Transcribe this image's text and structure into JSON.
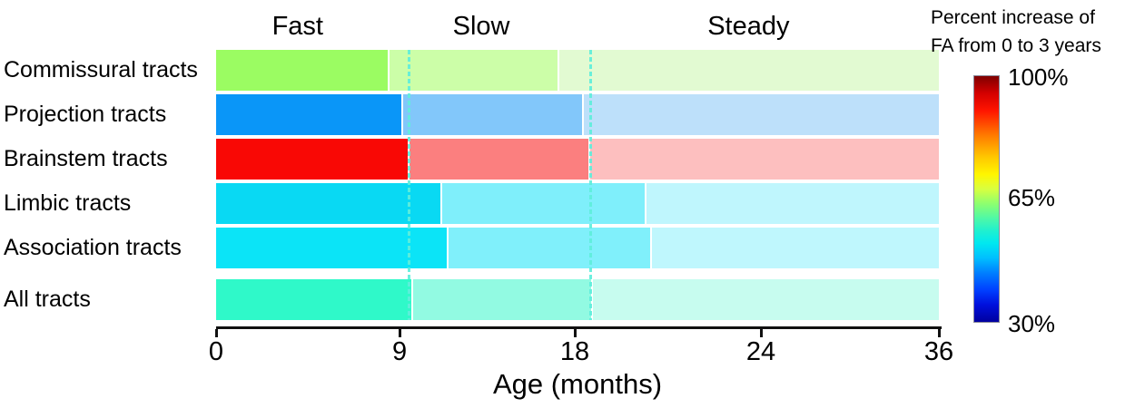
{
  "axis": {
    "label": "Age (months)",
    "tick_labels": [
      "0",
      "9",
      "18",
      "24",
      "36"
    ]
  },
  "colorbar": {
    "title_line1": "Percent increase of",
    "title_line2": "FA from 0 to 3 years",
    "max_label": "100%",
    "mid_label": "65%",
    "min_label": "30%"
  },
  "chart_data": {
    "type": "bar",
    "subtype": "stacked-horizontal-phase-chart",
    "xlabel": "Age (months)",
    "x_ticks": [
      0,
      9,
      18,
      24,
      36
    ],
    "x_axis_note": "axis spacing is equal per tick interval (non-linear in months)",
    "phase_labels": [
      "Fast",
      "Slow",
      "Steady"
    ],
    "phase_label_positions_months": [
      4.0,
      13.2,
      23.6
    ],
    "dashed_lines_months": [
      9.5,
      18.5
    ],
    "dashed_line_color": "#5FEEDB",
    "colorbar": {
      "title": "Percent increase of FA from 0 to 3 years",
      "colormap": "jet",
      "min": "30%",
      "mid": "65%",
      "max": "100%"
    },
    "tracts": [
      {
        "name": "Commissural tracts",
        "fast_end_months": 8.5,
        "slow_end_months": 17.2,
        "colors": {
          "fast": "#9BFC62",
          "slow": "#CCFEA8",
          "steady": "#E2FAD2"
        }
      },
      {
        "name": "Projection tracts",
        "fast_end_months": 9.2,
        "slow_end_months": 18.3,
        "colors": {
          "fast": "#0A96F8",
          "slow": "#82C7FA",
          "steady": "#BDE0FA"
        }
      },
      {
        "name": "Brainstem tracts",
        "fast_end_months": 9.5,
        "slow_end_months": 18.5,
        "colors": {
          "fast": "#F90805",
          "slow": "#FB7F7F",
          "steady": "#FDBFBF"
        }
      },
      {
        "name": "Limbic tracts",
        "fast_end_months": 11.2,
        "slow_end_months": 20.3,
        "colors": {
          "fast": "#09D9F3",
          "slow": "#7FEFFB",
          "steady": "#BFF6FD"
        }
      },
      {
        "name": "Association tracts",
        "fast_end_months": 11.5,
        "slow_end_months": 20.5,
        "colors": {
          "fast": "#0BE4F7",
          "slow": "#80F0FB",
          "steady": "#BFF7FD"
        }
      },
      {
        "name": "All tracts",
        "fast_end_months": 9.7,
        "slow_end_months": 18.6,
        "colors": {
          "fast": "#2FF9C9",
          "slow": "#92FAE2",
          "steady": "#C7FCEF"
        }
      }
    ]
  }
}
